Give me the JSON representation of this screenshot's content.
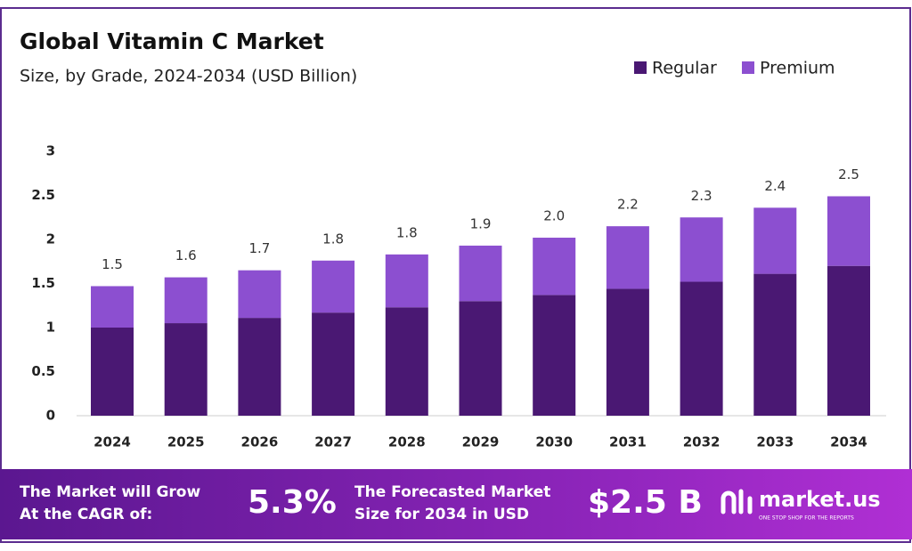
{
  "chart_data": {
    "type": "stacked-bar",
    "title": "Global Vitamin C Market",
    "subtitle": "Size, by Grade, 2024-2034 (USD Billion)",
    "categories": [
      "2024",
      "2025",
      "2026",
      "2027",
      "2028",
      "2029",
      "2030",
      "2031",
      "2032",
      "2033",
      "2034"
    ],
    "series": [
      {
        "name": "Regular",
        "color": "#4a1873",
        "values": [
          1.0,
          1.05,
          1.11,
          1.17,
          1.23,
          1.3,
          1.37,
          1.44,
          1.52,
          1.61,
          1.7
        ]
      },
      {
        "name": "Premium",
        "color": "#8c4fd0",
        "values": [
          0.47,
          0.52,
          0.54,
          0.59,
          0.6,
          0.63,
          0.65,
          0.71,
          0.73,
          0.75,
          0.79
        ]
      }
    ],
    "totals": {
      "values": [
        1.5,
        1.6,
        1.7,
        1.8,
        1.8,
        1.9,
        2.0,
        2.2,
        2.3,
        2.4,
        2.5
      ],
      "value_labels": [
        "1.5",
        "1.6",
        "1.7",
        "1.8",
        "1.8",
        "1.9",
        "2.0",
        "2.2",
        "2.3",
        "2.4",
        "2.5"
      ]
    },
    "ylim": [
      0,
      3
    ],
    "yticks": [
      0,
      0.5,
      1,
      1.5,
      2,
      2.5,
      3
    ],
    "grid": false,
    "legend": "top-right"
  },
  "footer": {
    "cagr_text": [
      "The Market will Grow",
      "At the CAGR of:"
    ],
    "cagr": "5.3%",
    "forecast_text": [
      "The Forecasted Market",
      "Size for 2034 in USD"
    ],
    "forecast": "$2.5 B",
    "brand": "market.us",
    "tagline": "ONE STOP SHOP FOR THE REPORTS"
  }
}
